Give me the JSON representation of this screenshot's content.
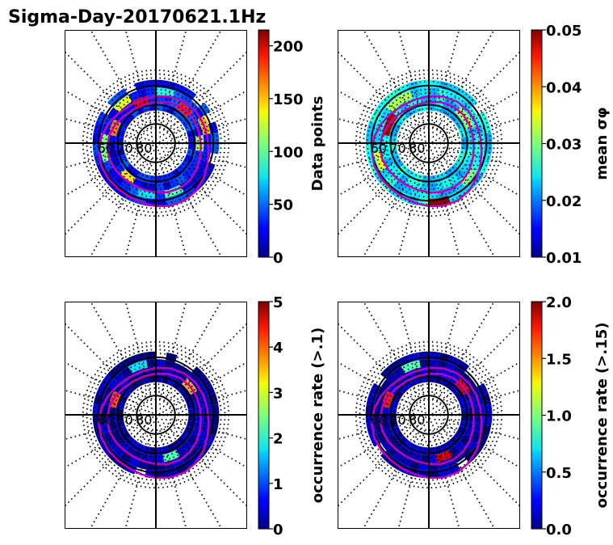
{
  "chart_data": {
    "type": "heatmap",
    "title": "Sigma-Day-20170621.1Hz",
    "lat_labels": [
      "60",
      "70",
      "80"
    ],
    "panels": [
      {
        "id": "data-points",
        "colorbar_label": "Data points",
        "colorbar_ticks": [
          "0",
          "50",
          "100",
          "150",
          "200"
        ],
        "colorbar_range": [
          0,
          215
        ],
        "colormap": "jet",
        "typical_value_fraction": 0.15,
        "highlights": [
          {
            "mlt": 1.0,
            "ring": 2,
            "value_fraction": 0.45
          },
          {
            "mlt": 5.5,
            "ring": 1,
            "value_fraction": 0.55
          },
          {
            "mlt": 7.0,
            "ring": 2,
            "value_fraction": 0.7
          },
          {
            "mlt": 9.0,
            "ring": 1,
            "value_fraction": 0.85
          },
          {
            "mlt": 11.0,
            "ring": 2,
            "value_fraction": 0.4
          },
          {
            "mlt": 13.0,
            "ring": 1,
            "value_fraction": 0.9
          },
          {
            "mlt": 14.5,
            "ring": 2,
            "value_fraction": 0.6
          },
          {
            "mlt": 16.5,
            "ring": 1,
            "value_fraction": 0.75
          },
          {
            "mlt": 18.0,
            "ring": 2,
            "value_fraction": 0.5
          },
          {
            "mlt": 21.0,
            "ring": 1,
            "value_fraction": 0.65
          },
          {
            "mlt": 23.0,
            "ring": 2,
            "value_fraction": 0.35
          }
        ]
      },
      {
        "id": "mean-sigma-phi",
        "colorbar_label": "mean σφ",
        "colorbar_ticks": [
          "0.01",
          "0.02",
          "0.03",
          "0.04",
          "0.05"
        ],
        "colorbar_range": [
          0.01,
          0.05
        ],
        "colormap": "jet",
        "typical_value_fraction": 0.35,
        "highlights": [
          {
            "mlt": 0.5,
            "ring": 3,
            "value_fraction": 0.98
          },
          {
            "mlt": 3.0,
            "ring": 2,
            "value_fraction": 0.5
          },
          {
            "mlt": 8.0,
            "ring": 1,
            "value_fraction": 0.55
          },
          {
            "mlt": 14.0,
            "ring": 2,
            "value_fraction": 0.55
          },
          {
            "mlt": 16.0,
            "ring": 1,
            "value_fraction": 0.95
          },
          {
            "mlt": 19.0,
            "ring": 2,
            "value_fraction": 0.6
          }
        ]
      },
      {
        "id": "occurrence-rate-01",
        "colorbar_label": "occurrence rate (>.1)",
        "colorbar_ticks": [
          "0",
          "1",
          "2",
          "3",
          "4",
          "5"
        ],
        "colorbar_range": [
          0,
          5
        ],
        "colormap": "jet",
        "typical_value_fraction": 0.04,
        "highlights": [
          {
            "mlt": 1.0,
            "ring": 1,
            "value_fraction": 0.45
          },
          {
            "mlt": 8.5,
            "ring": 1,
            "value_fraction": 0.7
          },
          {
            "mlt": 13.0,
            "ring": 2,
            "value_fraction": 0.35
          },
          {
            "mlt": 16.5,
            "ring": 1,
            "value_fraction": 0.8
          }
        ]
      },
      {
        "id": "occurrence-rate-015",
        "colorbar_label": "occurrence rate (>.15)",
        "colorbar_ticks": [
          "0.0",
          "0.5",
          "1.0",
          "1.5",
          "2.0"
        ],
        "colorbar_range": [
          0,
          2
        ],
        "colormap": "jet",
        "typical_value_fraction": 0.05,
        "highlights": [
          {
            "mlt": 1.0,
            "ring": 1,
            "value_fraction": 0.92
          },
          {
            "mlt": 8.5,
            "ring": 1,
            "value_fraction": 0.9
          },
          {
            "mlt": 13.0,
            "ring": 2,
            "value_fraction": 0.45
          },
          {
            "mlt": 16.5,
            "ring": 1,
            "value_fraction": 0.85
          }
        ]
      }
    ]
  }
}
